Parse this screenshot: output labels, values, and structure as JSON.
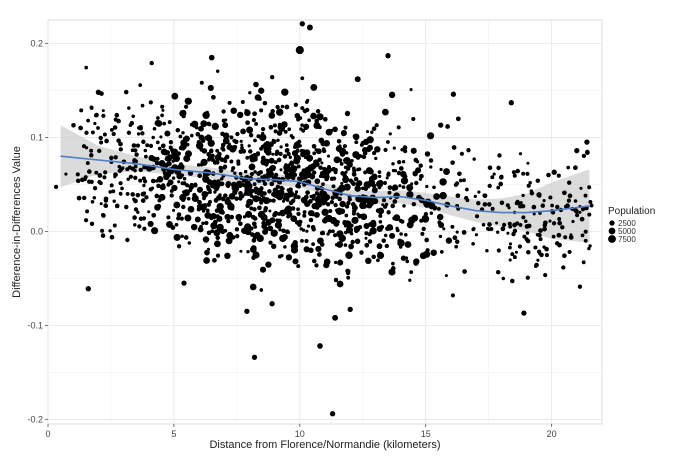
{
  "chart_data": {
    "type": "scatter",
    "title": "",
    "xlabel": "Distance from Florence/Normandie (kilometers)",
    "ylabel": "Difference-in-Differences Value",
    "xlim": [
      0,
      22
    ],
    "ylim": [
      -0.205,
      0.225
    ],
    "x_ticks": [
      0,
      5,
      10,
      15,
      20
    ],
    "x_tick_labels": [
      "0",
      "5",
      "10",
      "15",
      "20"
    ],
    "y_ticks": [
      -0.2,
      -0.1,
      0.0,
      0.1,
      0.2
    ],
    "y_tick_labels": [
      "-0.2",
      "-0.1",
      "0.0",
      "0.1",
      "0.2"
    ],
    "grid": true,
    "point_color": "#000000",
    "smooth_color": "#4a7ec7",
    "band_color": "#cfcfcf",
    "legend": {
      "title": "Population",
      "placement": "right",
      "entries": [
        {
          "label": "2500",
          "population": 2500
        },
        {
          "label": "5000",
          "population": 5000
        },
        {
          "label": "7500",
          "population": 7500
        }
      ]
    },
    "annotated_points": [
      {
        "x": 10.0,
        "y": 0.193,
        "population": 8200
      },
      {
        "x": 10.1,
        "y": 0.221,
        "population": 2500
      },
      {
        "x": 10.4,
        "y": 0.217,
        "population": 3500
      },
      {
        "x": 9.2,
        "y": 0.127,
        "population": 6500
      },
      {
        "x": 10.8,
        "y": 0.122,
        "population": 6000
      },
      {
        "x": 6.5,
        "y": 0.185,
        "population": 3000
      },
      {
        "x": 13.5,
        "y": 0.187,
        "population": 2500
      },
      {
        "x": 18.4,
        "y": 0.137,
        "population": 2500
      },
      {
        "x": 2.0,
        "y": 0.148,
        "population": 2500
      },
      {
        "x": 1.6,
        "y": -0.061,
        "population": 2500
      },
      {
        "x": 7.9,
        "y": -0.085,
        "population": 2500
      },
      {
        "x": 8.9,
        "y": -0.077,
        "population": 2500
      },
      {
        "x": 11.4,
        "y": -0.092,
        "population": 3500
      },
      {
        "x": 12.0,
        "y": -0.083,
        "population": 2500
      },
      {
        "x": 10.8,
        "y": -0.122,
        "population": 3000
      },
      {
        "x": 8.2,
        "y": -0.134,
        "population": 2500
      },
      {
        "x": 11.3,
        "y": -0.194,
        "population": 2500
      },
      {
        "x": 5.4,
        "y": -0.055,
        "population": 2500
      },
      {
        "x": 18.9,
        "y": -0.087,
        "population": 2500
      },
      {
        "x": 21.4,
        "y": 0.095,
        "population": 2500
      },
      {
        "x": 21.0,
        "y": 0.086,
        "population": 2500
      },
      {
        "x": 20.1,
        "y": 0.063,
        "population": 2500
      },
      {
        "x": 19.5,
        "y": 0.039,
        "population": 2500
      },
      {
        "x": 16.1,
        "y": 0.146,
        "population": 2500
      },
      {
        "x": 12.3,
        "y": 0.162,
        "population": 3500
      },
      {
        "x": 13.4,
        "y": 0.127,
        "population": 5000
      },
      {
        "x": 6.3,
        "y": -0.031,
        "population": 5000
      },
      {
        "x": 11.6,
        "y": -0.056,
        "population": 5000
      },
      {
        "x": 4.7,
        "y": 0.058,
        "population": 4500
      },
      {
        "x": 8.7,
        "y": 0.086,
        "population": 5000
      }
    ],
    "smooth_line": [
      {
        "x": 0.5,
        "y": 0.08,
        "lo": 0.047,
        "hi": 0.113
      },
      {
        "x": 2.0,
        "y": 0.076,
        "lo": 0.061,
        "hi": 0.091
      },
      {
        "x": 3.5,
        "y": 0.072,
        "lo": 0.064,
        "hi": 0.08
      },
      {
        "x": 5.0,
        "y": 0.066,
        "lo": 0.06,
        "hi": 0.072
      },
      {
        "x": 6.5,
        "y": 0.062,
        "lo": 0.056,
        "hi": 0.068
      },
      {
        "x": 8.0,
        "y": 0.056,
        "lo": 0.05,
        "hi": 0.062
      },
      {
        "x": 9.0,
        "y": 0.055,
        "lo": 0.049,
        "hi": 0.061
      },
      {
        "x": 10.0,
        "y": 0.053,
        "lo": 0.047,
        "hi": 0.059
      },
      {
        "x": 11.0,
        "y": 0.045,
        "lo": 0.039,
        "hi": 0.051
      },
      {
        "x": 12.0,
        "y": 0.038,
        "lo": 0.032,
        "hi": 0.044
      },
      {
        "x": 13.0,
        "y": 0.036,
        "lo": 0.029,
        "hi": 0.043
      },
      {
        "x": 14.0,
        "y": 0.037,
        "lo": 0.03,
        "hi": 0.044
      },
      {
        "x": 15.0,
        "y": 0.033,
        "lo": 0.025,
        "hi": 0.041
      },
      {
        "x": 16.0,
        "y": 0.027,
        "lo": 0.017,
        "hi": 0.037
      },
      {
        "x": 17.0,
        "y": 0.022,
        "lo": 0.01,
        "hi": 0.034
      },
      {
        "x": 18.0,
        "y": 0.02,
        "lo": 0.005,
        "hi": 0.035
      },
      {
        "x": 19.0,
        "y": 0.02,
        "lo": 0.0,
        "hi": 0.04
      },
      {
        "x": 20.0,
        "y": 0.022,
        "lo": -0.008,
        "hi": 0.052
      },
      {
        "x": 21.5,
        "y": 0.027,
        "lo": -0.012,
        "hi": 0.066
      }
    ]
  }
}
